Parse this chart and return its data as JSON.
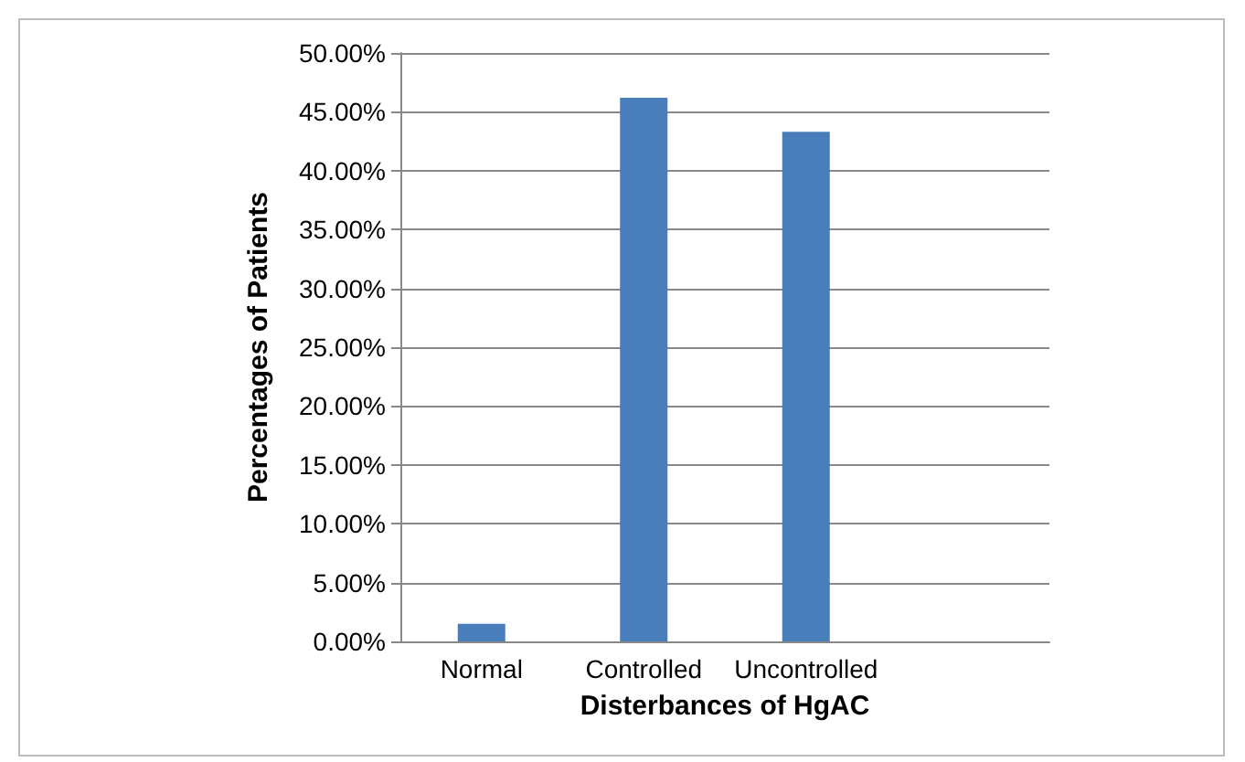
{
  "chart_data": {
    "type": "bar",
    "xlabel": "Disterbances of HgAC",
    "ylabel": "Percentages of Patients",
    "categories": [
      "Normal",
      "Controlled",
      "Uncontrolled",
      null
    ],
    "values": [
      1.5,
      46.2,
      43.3,
      null
    ],
    "color": "#4a7ebb",
    "ylim": [
      0,
      50
    ],
    "yticks": [
      {
        "value": 0,
        "label": "0.00%"
      },
      {
        "value": 5,
        "label": "5.00%"
      },
      {
        "value": 10,
        "label": "10.00%"
      },
      {
        "value": 15,
        "label": "15.00%"
      },
      {
        "value": 20,
        "label": "20.00%"
      },
      {
        "value": 25,
        "label": "25.00%"
      },
      {
        "value": 30,
        "label": "30.00%"
      },
      {
        "value": 35,
        "label": "35.00%"
      },
      {
        "value": 40,
        "label": "40.00%"
      },
      {
        "value": 45,
        "label": "45.00%"
      },
      {
        "value": 50,
        "label": "50.00%"
      }
    ],
    "grid": "y"
  }
}
